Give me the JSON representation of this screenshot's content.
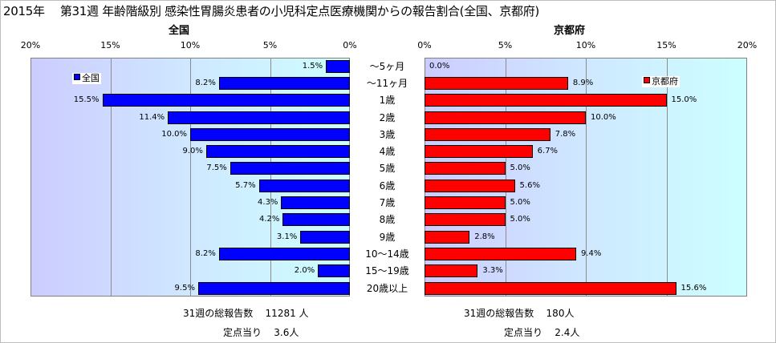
{
  "title": "2015年　 第31週 年齢階級別 感染性胃腸炎患者の小児科定点医療機関からの報告割合(全国、京都府)",
  "chart_data": {
    "type": "bar",
    "categories": [
      "～5ヶ月",
      "～11ヶ月",
      "1歳",
      "2歳",
      "3歳",
      "4歳",
      "5歳",
      "6歳",
      "7歳",
      "8歳",
      "9歳",
      "10～14歳",
      "15～19歳",
      "20歳以上"
    ],
    "xlim": [
      0,
      20
    ],
    "tick_values": [
      0,
      5,
      10,
      15,
      20
    ],
    "tick_suffix": "%",
    "grid": true,
    "series": [
      {
        "name": "全国",
        "panel_title": "全国",
        "color": "#0000ff",
        "values": [
          1.5,
          8.2,
          15.5,
          11.4,
          10.0,
          9.0,
          7.5,
          5.7,
          4.3,
          4.2,
          3.1,
          8.2,
          2.0,
          9.5
        ],
        "legend_position": "top-left"
      },
      {
        "name": "京都府",
        "panel_title": "京都府",
        "color": "#ff0000",
        "values": [
          0.0,
          8.9,
          15.0,
          10.0,
          7.8,
          6.7,
          5.0,
          5.6,
          5.0,
          5.0,
          2.8,
          9.4,
          3.3,
          15.6
        ],
        "legend_position": "top-right"
      }
    ]
  },
  "footer": {
    "left": {
      "total_label": "31週の総報告数",
      "total_value": "11281 人",
      "per_label": "定点当り",
      "per_value": "3.6人"
    },
    "right": {
      "total_label": "31週の総報告数",
      "total_value": "180人",
      "per_label": "定点当り",
      "per_value": "2.4人"
    }
  }
}
